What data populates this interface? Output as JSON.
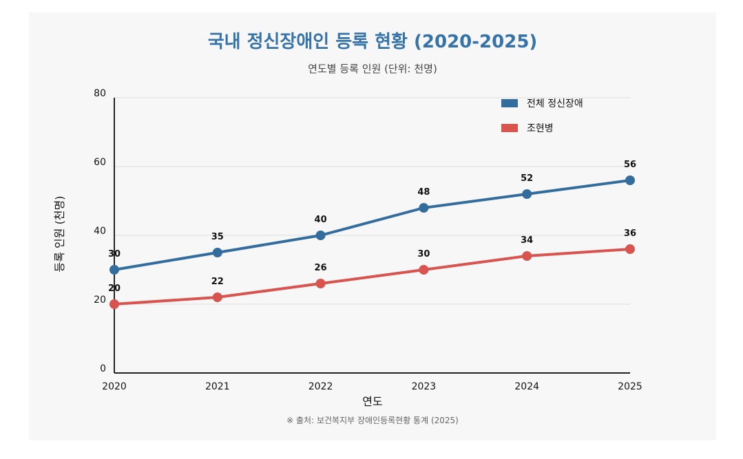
{
  "chart_data": {
    "type": "line",
    "title": "국내 정신장애인 등록 현황 (2020-2025)",
    "subtitle": "연도별 등록 인원 (단위: 천명)",
    "xlabel": "연도",
    "ylabel": "등록 인원 (천명)",
    "categories": [
      "2020",
      "2021",
      "2022",
      "2023",
      "2024",
      "2025"
    ],
    "ylim": [
      0,
      80
    ],
    "yticks": [
      "0",
      "20",
      "40",
      "60",
      "80"
    ],
    "grid": true,
    "legend_position": "top-right",
    "series": [
      {
        "name": "전체 정신장애",
        "color": "#336d9e",
        "values": [
          30,
          35,
          40,
          48,
          52,
          56
        ]
      },
      {
        "name": "조현병",
        "color": "#d9534f",
        "values": [
          20,
          22,
          26,
          30,
          34,
          36
        ]
      }
    ],
    "source": "※ 출처: 보건복지부 장애인등록현황 통계 (2025)"
  }
}
